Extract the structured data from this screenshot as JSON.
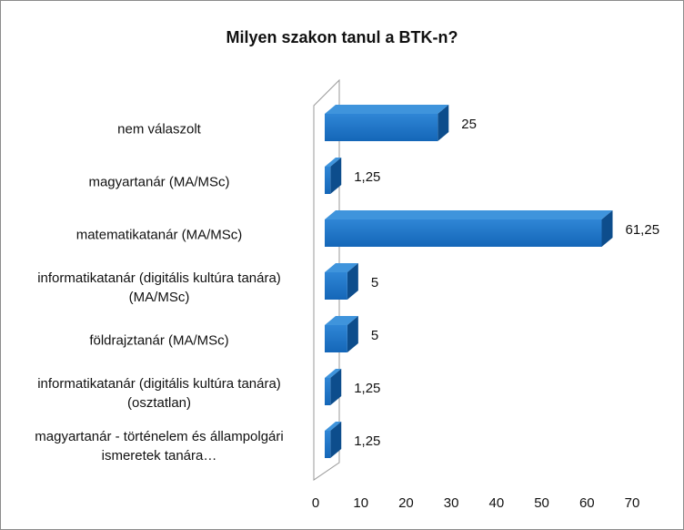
{
  "chart_data": {
    "type": "bar3d_horizontal",
    "title": "Milyen szakon tanul a BTK-n?",
    "categories": [
      "nem válaszolt",
      "magyartanár (MA/MSc)",
      "matematikatanár (MA/MSc)",
      "informatikatanár (digitális kultúra tanára) (MA/MSc)",
      "földrajztanár (MA/MSc)",
      "informatikatanár (digitális kultúra tanára) (osztatlan)",
      "magyartanár - történelem és állampolgári ismeretek tanára…"
    ],
    "values": [
      25,
      1.25,
      61.25,
      5,
      5,
      1.25,
      1.25
    ],
    "value_labels": [
      "25",
      "1,25",
      "61,25",
      "5",
      "5",
      "1,25",
      "1,25"
    ],
    "color": "#1f74c6",
    "xlim": [
      0,
      70
    ],
    "xticks": [
      0,
      10,
      20,
      30,
      40,
      50,
      60,
      70
    ]
  }
}
